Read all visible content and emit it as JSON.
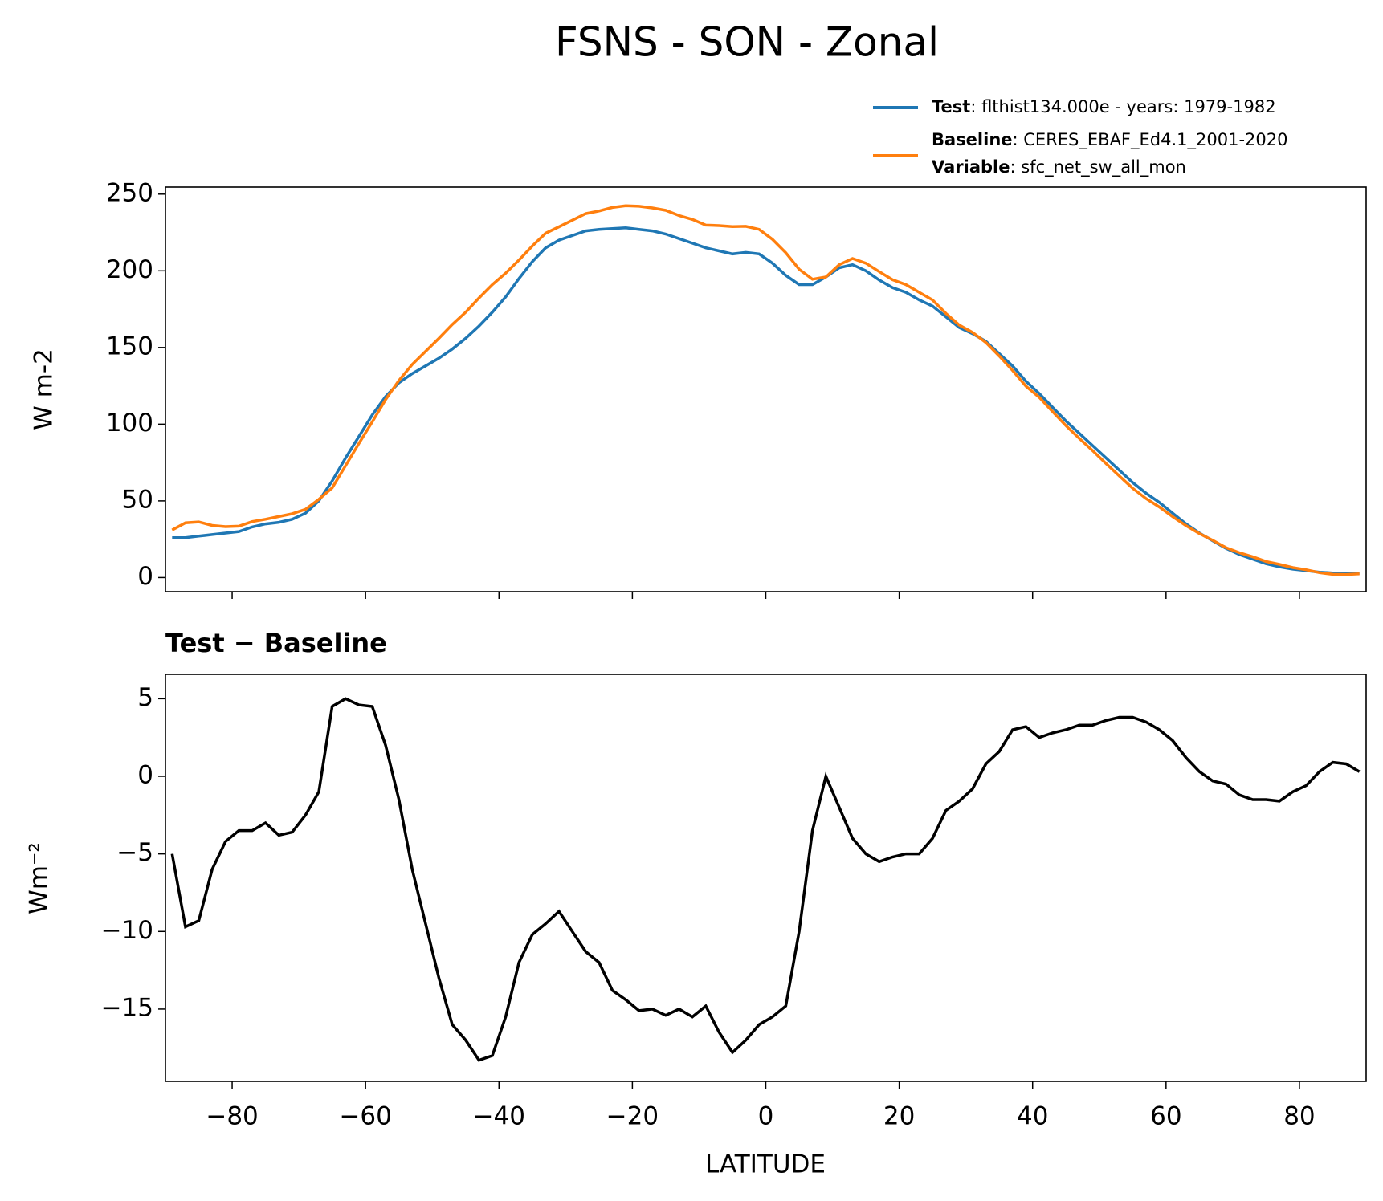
{
  "chart_data": [
    {
      "type": "line",
      "title": "FSNS - SON - Zonal",
      "ylabel": "W m-2",
      "x": [
        -89,
        -87,
        -85,
        -83,
        -81,
        -79,
        -77,
        -75,
        -73,
        -71,
        -69,
        -67,
        -65,
        -63,
        -61,
        -59,
        -57,
        -55,
        -53,
        -51,
        -49,
        -47,
        -45,
        -43,
        -41,
        -39,
        -37,
        -35,
        -33,
        -31,
        -29,
        -27,
        -25,
        -23,
        -21,
        -19,
        -17,
        -15,
        -13,
        -11,
        -9,
        -7,
        -5,
        -3,
        -1,
        1,
        3,
        5,
        7,
        9,
        11,
        13,
        15,
        17,
        19,
        21,
        23,
        25,
        27,
        29,
        31,
        33,
        35,
        37,
        39,
        41,
        43,
        45,
        47,
        49,
        51,
        53,
        55,
        57,
        59,
        61,
        63,
        65,
        67,
        69,
        71,
        73,
        75,
        77,
        79,
        81,
        83,
        85,
        87,
        89
      ],
      "series": [
        {
          "name": "Test",
          "label": ": flthist134.000e - years: 1979-1982",
          "color": "#1f77b4",
          "values": [
            26,
            26,
            27,
            28,
            29,
            30,
            33,
            35,
            36,
            38,
            42,
            50,
            63,
            78,
            92,
            106,
            118,
            127,
            133,
            138,
            143,
            149,
            156,
            164,
            173,
            183,
            195,
            206,
            215,
            220,
            223,
            226,
            227,
            227.5,
            228,
            227,
            226,
            224,
            221,
            218,
            215,
            213,
            211,
            212,
            211,
            205,
            197,
            191,
            191,
            196,
            202,
            204,
            200,
            194,
            189,
            186,
            181,
            177,
            170,
            163,
            159,
            154,
            146,
            138,
            128,
            120,
            111,
            102,
            94,
            86,
            78,
            70,
            62,
            55,
            49,
            42,
            35,
            29,
            24,
            19,
            15,
            12,
            9,
            7,
            5.5,
            4.5,
            3.5,
            3,
            2.8,
            2.7
          ]
        },
        {
          "name": "Baseline",
          "label": ": CERES_EBAF_Ed4.1_2001-2020",
          "color": "#ff7f0e",
          "values": [
            31,
            35.7,
            36.3,
            34,
            33.2,
            33.5,
            36.5,
            38,
            39.8,
            41.6,
            44.5,
            51,
            58.5,
            73,
            87.4,
            101.5,
            116,
            128.5,
            139,
            147.5,
            156,
            165,
            173,
            182.3,
            191,
            198.5,
            207,
            216.2,
            224.5,
            228.7,
            233,
            237.3,
            239,
            241.3,
            242.4,
            242.1,
            241,
            239.4,
            236,
            233.5,
            229.8,
            229.5,
            228.8,
            229,
            227,
            220.5,
            211.8,
            201,
            194.5,
            196,
            204,
            208,
            205,
            199.5,
            194.2,
            191,
            186,
            181,
            172.2,
            164.6,
            159.8,
            153.2,
            144.4,
            135,
            124.8,
            117.5,
            108.2,
            99,
            90.7,
            82.7,
            74.4,
            66.2,
            58.2,
            51.5,
            46,
            39.7,
            33.8,
            28.7,
            24.3,
            19.5,
            16.2,
            13.5,
            10.5,
            8.6,
            6.5,
            5.1,
            3.2,
            2.1,
            2,
            2.4
          ]
        }
      ],
      "variable_name": "Variable",
      "variable_label": ": sfc_net_sw_all_mon",
      "xlim": [
        -90,
        90
      ],
      "xticks": [
        -80,
        -60,
        -40,
        -20,
        0,
        20,
        40,
        60,
        80
      ],
      "ylim": [
        -9.2,
        254.6
      ],
      "yticks": [
        0,
        50,
        100,
        150,
        200,
        250
      ]
    },
    {
      "type": "line",
      "title": "Test − Baseline",
      "xlabel": "LATITUDE",
      "ylabel": "Wm⁻²",
      "x": [
        -89,
        -87,
        -85,
        -83,
        -81,
        -79,
        -77,
        -75,
        -73,
        -71,
        -69,
        -67,
        -65,
        -63,
        -61,
        -59,
        -57,
        -55,
        -53,
        -51,
        -49,
        -47,
        -45,
        -43,
        -41,
        -39,
        -37,
        -35,
        -33,
        -31,
        -29,
        -27,
        -25,
        -23,
        -21,
        -19,
        -17,
        -15,
        -13,
        -11,
        -9,
        -7,
        -5,
        -3,
        -1,
        1,
        3,
        5,
        7,
        9,
        11,
        13,
        15,
        17,
        19,
        21,
        23,
        25,
        27,
        29,
        31,
        33,
        35,
        37,
        39,
        41,
        43,
        45,
        47,
        49,
        51,
        53,
        55,
        57,
        59,
        61,
        63,
        65,
        67,
        69,
        71,
        73,
        75,
        77,
        79,
        81,
        83,
        85,
        87,
        89
      ],
      "series": [
        {
          "color": "#000000",
          "values": [
            -5,
            -9.7,
            -9.3,
            -6,
            -4.2,
            -3.5,
            -3.5,
            -3,
            -3.8,
            -3.6,
            -2.5,
            -1,
            4.5,
            5,
            4.6,
            4.5,
            2,
            -1.5,
            -6,
            -9.5,
            -13,
            -16,
            -17,
            -18.3,
            -18,
            -15.5,
            -12,
            -10.2,
            -9.5,
            -8.7,
            -10,
            -11.3,
            -12,
            -13.8,
            -14.4,
            -15.1,
            -15,
            -15.4,
            -15,
            -15.5,
            -14.8,
            -16.5,
            -17.8,
            -17,
            -16,
            -15.5,
            -14.8,
            -10,
            -3.5,
            0,
            -2,
            -4,
            -5,
            -5.5,
            -5.2,
            -5,
            -5,
            -4,
            -2.2,
            -1.6,
            -0.8,
            0.8,
            1.6,
            3,
            3.2,
            2.5,
            2.8,
            3,
            3.3,
            3.3,
            3.6,
            3.8,
            3.8,
            3.5,
            3,
            2.3,
            1.2,
            0.3,
            -0.3,
            -0.5,
            -1.2,
            -1.5,
            -1.5,
            -1.6,
            -1,
            -0.6,
            0.3,
            0.9,
            0.8,
            0.3
          ]
        }
      ],
      "xlim": [
        -90,
        90
      ],
      "xticks": [
        {
          "value": -80,
          "label": "−80"
        },
        {
          "value": -60,
          "label": "−60"
        },
        {
          "value": -40,
          "label": "−40"
        },
        {
          "value": -20,
          "label": "−20"
        },
        0,
        20,
        40,
        60,
        80
      ],
      "ylim": [
        -19.66,
        6.57
      ],
      "yticks": [
        5,
        0,
        {
          "value": -5,
          "label": "−5"
        },
        {
          "value": -10,
          "label": "−10"
        },
        {
          "value": -15,
          "label": "−15"
        }
      ]
    }
  ]
}
